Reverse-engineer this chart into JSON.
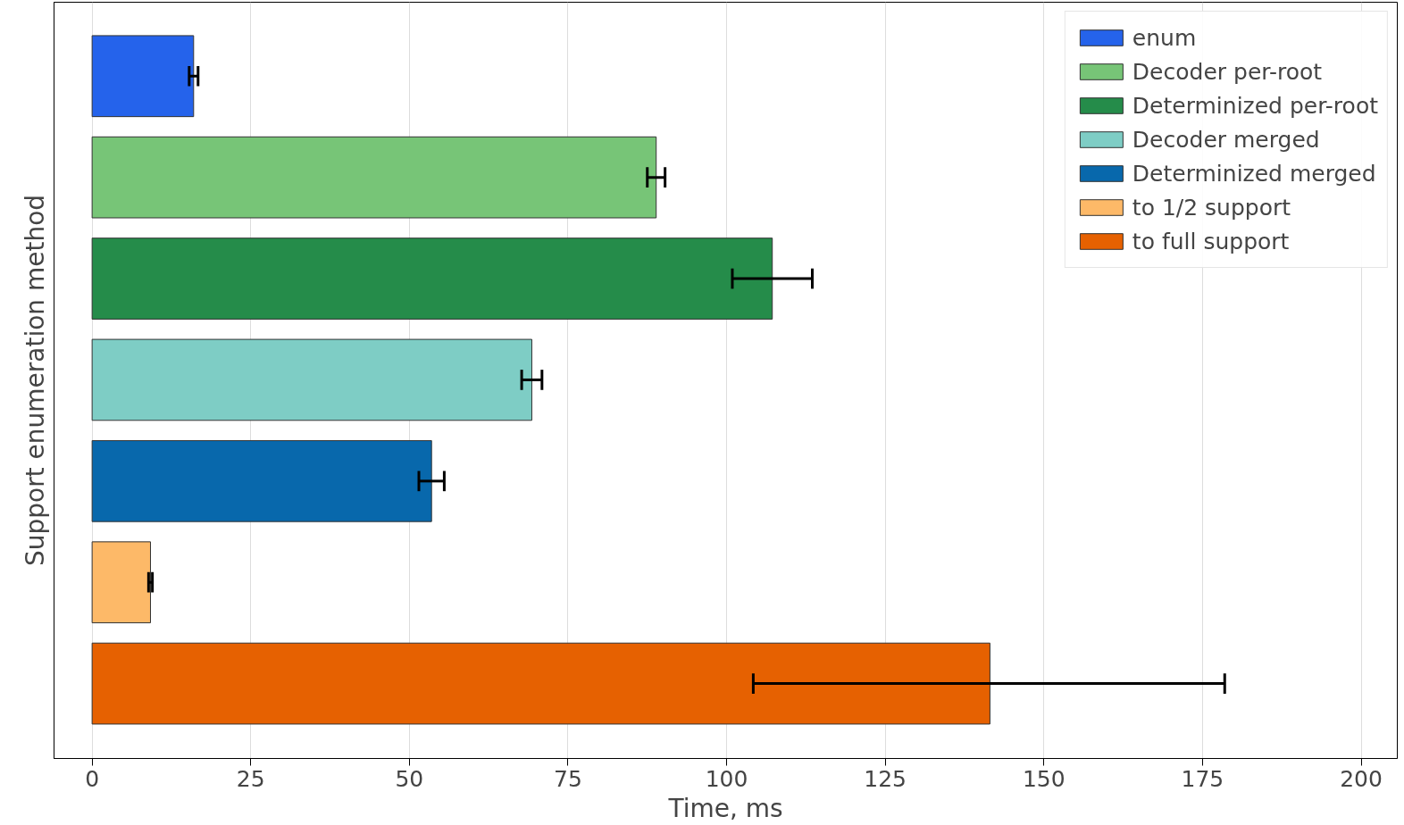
{
  "chart_data": {
    "type": "bar",
    "orientation": "horizontal",
    "xlabel": "Time, ms",
    "ylabel": "Support enumeration method",
    "categories": [
      null,
      null,
      null,
      null,
      null,
      null,
      null
    ],
    "series": [
      {
        "name": "enum",
        "color": "#2563eb",
        "values": [
          16.0,
          null,
          null,
          null,
          null,
          null,
          null
        ],
        "errors": [
          0.7,
          null,
          null,
          null,
          null,
          null,
          null
        ]
      },
      {
        "name": "Decoder per-root",
        "color": "#77c577",
        "values": [
          null,
          88.9,
          null,
          null,
          null,
          null,
          null
        ],
        "errors": [
          null,
          1.4,
          null,
          null,
          null,
          null,
          null
        ]
      },
      {
        "name": "Determinized per-root",
        "color": "#258c4a",
        "values": [
          null,
          null,
          107.2,
          null,
          null,
          null,
          null
        ],
        "errors": [
          null,
          null,
          6.3,
          null,
          null,
          null,
          null
        ]
      },
      {
        "name": "Decoder merged",
        "color": "#7ecdc5",
        "values": [
          null,
          null,
          null,
          69.3,
          null,
          null,
          null
        ],
        "errors": [
          null,
          null,
          null,
          1.6,
          null,
          null,
          null
        ]
      },
      {
        "name": "Determinized merged",
        "color": "#0868ac",
        "values": [
          null,
          null,
          null,
          null,
          53.5,
          null,
          null
        ],
        "errors": [
          null,
          null,
          null,
          null,
          2.0,
          null,
          null
        ]
      },
      {
        "name": "to 1/2 support",
        "color": "#fdb968",
        "values": [
          null,
          null,
          null,
          null,
          null,
          9.2,
          null
        ],
        "errors": [
          null,
          null,
          null,
          null,
          null,
          0.3,
          null
        ]
      },
      {
        "name": "to full support",
        "color": "#e66101",
        "values": [
          null,
          null,
          null,
          null,
          null,
          null,
          141.5
        ],
        "errors": [
          null,
          null,
          null,
          null,
          null,
          null,
          [
            104.2,
            178.5
          ]
        ]
      }
    ],
    "xlim": [
      -6,
      205.7
    ],
    "xticks": [
      0,
      25,
      50,
      75,
      100,
      125,
      150,
      175,
      200
    ],
    "grid": "x",
    "legend": "top right"
  }
}
